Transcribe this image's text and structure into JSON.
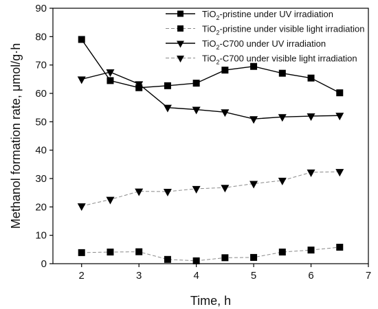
{
  "chart_data": {
    "type": "line",
    "xlabel": "Time, h",
    "ylabel": "Methanol formation rate, μmol/g·h",
    "xlim": [
      1.5,
      7
    ],
    "ylim": [
      0,
      90
    ],
    "xticks": [
      2,
      3,
      4,
      5,
      6,
      7
    ],
    "yticks": [
      0,
      10,
      20,
      30,
      40,
      50,
      60,
      70,
      80,
      90
    ],
    "grid": false,
    "legend_position": "top-right",
    "x": [
      2,
      2.5,
      3,
      3.5,
      4,
      4.5,
      5,
      5.5,
      6,
      6.5
    ],
    "series": [
      {
        "name": "TiO2-pristine under UV irradiation",
        "legend": {
          "base": "TiO",
          "sub": "2",
          "rest": "-pristine under UV irradiation"
        },
        "marker": "square",
        "line": "solid",
        "color": "#000000",
        "values": [
          79.0,
          64.5,
          62.0,
          62.7,
          63.6,
          68.2,
          69.5,
          67.1,
          65.4,
          60.2
        ]
      },
      {
        "name": "TiO2-pristine under visible light irradiation",
        "legend": {
          "base": "TiO",
          "sub": "2",
          "rest": "-pristine under visible light irradiation"
        },
        "marker": "square",
        "line": "dashed",
        "color": "#000000",
        "values": [
          3.9,
          4.1,
          4.2,
          1.5,
          1.0,
          2.1,
          2.2,
          4.1,
          4.8,
          5.8
        ]
      },
      {
        "name": "TiO2-C700 under UV irradiation",
        "legend": {
          "base": "TiO",
          "sub": "2",
          "rest": "-C700 under UV irradiation"
        },
        "marker": "triangle-down",
        "line": "solid",
        "color": "#000000",
        "values": [
          65.0,
          67.5,
          63.3,
          55.0,
          54.3,
          53.4,
          51.0,
          51.7,
          52.0,
          52.2
        ]
      },
      {
        "name": "TiO2-C700 under visible light irradiation",
        "legend": {
          "base": "TiO",
          "sub": "2",
          "rest": "-C700 under visible light irradiation"
        },
        "marker": "triangle-down",
        "line": "dashed",
        "color": "#000000",
        "values": [
          20.3,
          22.6,
          25.5,
          25.4,
          26.4,
          26.8,
          28.2,
          29.3,
          32.2,
          32.4
        ]
      }
    ]
  }
}
